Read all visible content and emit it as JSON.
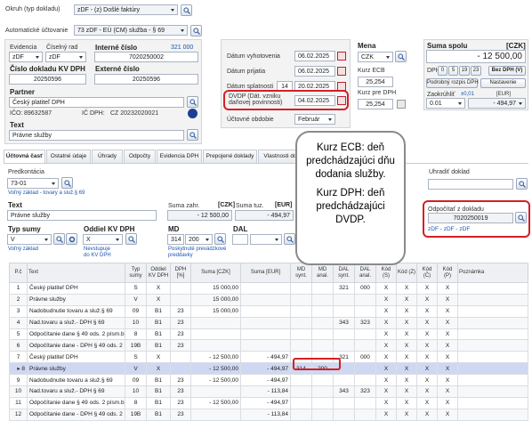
{
  "top": {
    "okruh_label": "Okruh (typ dokladu)",
    "okruh_value": "zDF - (z) Došlé faktúry",
    "auto_label": "Automatické účtovanie",
    "auto_value": "73 zDF - EÚ (CM) služba - § 69"
  },
  "doc": {
    "evidencia_label": "Evidencia",
    "evidencia_value": "zDF",
    "ciselny_rad_label": "Číselný rad",
    "ciselny_rad_value": "zDF",
    "interne_cislo_label": "Interné číslo",
    "interne_cislo_counter": "321 000",
    "interne_cislo_value": "7020250002",
    "kvdph_label": "Číslo dokladu KV DPH",
    "kvdph_value": "20250596",
    "externe_label": "Externé číslo",
    "externe_value": "20250596",
    "partner_label": "Partner",
    "partner_value": "Český platiteľ DPH",
    "ico_label": "IČO:",
    "ico_value": "89632587",
    "icdph_label": "IČ DPH:",
    "icdph_value": "CZ 20232020021",
    "text_label": "Text",
    "text_value": "Právne služby"
  },
  "dates": {
    "vyhotovenia_label": "Dátum vyhotovenia",
    "vyhotovenia_value": "06.02.2025",
    "prijatia_label": "Dátum prijatia",
    "prijatia_value": "06.02.2025",
    "splatnosti_label": "Dátum splatnosti",
    "splatnosti_days": "14",
    "splatnosti_value": "20.02.2025",
    "dvdp_label_1": "DVDP (Dát. vzniku",
    "dvdp_label_2": "daňovej povinnosti)",
    "dvdp_value": "04.02.2025",
    "obdobie_label": "Účtovné obdobie",
    "obdobie_value": "Február"
  },
  "currency": {
    "mena_label": "Mena",
    "mena_value": "CZK",
    "kurz_ecb_label": "Kurz ECB",
    "kurz_ecb_value": "25,254",
    "kurz_dph_label": "Kurz pre DPH",
    "kurz_dph_value": "25,254"
  },
  "sum": {
    "title": "Suma spolu",
    "currency": "[CZK]",
    "value": "- 12 500,00",
    "dph_label": "DPH",
    "rates": [
      "0",
      "5",
      "19",
      "23"
    ],
    "bez_dph": "Bez DPH (V)",
    "podrobny": "Podrobný rozpis DPH",
    "nastavenie": "Nastavenie",
    "zaokruhlit_label": "Zaokrúhliť",
    "zaokruhlit_step": "±0,01",
    "zaokruhlit_value": "0.01",
    "eur_label": "[EUR]",
    "eur_value": "- 494,97"
  },
  "callout": {
    "ecb_text": "Kurz ECB: deň predchádzajúci dňu dodania služby.",
    "dph_text": "Kurz DPH: deň predchádzajúci DVDP."
  },
  "tabs": [
    "Účtovná časť",
    "Ostatné údaje",
    "Úhrady",
    "Odpočty",
    "Evidencia DPH",
    "Prepojené doklady",
    "Vlastnosti do"
  ],
  "detail": {
    "predkontacia_label": "Predkontácia",
    "predkontacia_value": "73-01",
    "predkontacia_note": "Voľný základ - tovary a služ.§ 69",
    "uhradit_label": "Uhradiť doklad",
    "text_label": "Text",
    "text_value": "Právne služby",
    "suma_zahr_label": "Suma zahr.",
    "suma_zahr_unit": "[CZK]",
    "suma_zahr_value": "- 12 500,00",
    "suma_tuz_label": "Suma tuz.",
    "suma_tuz_unit": "[EUR]",
    "suma_tuz_value": "- 494,97",
    "odpocitat_label": "Odpočítať z dokladu",
    "odpocitat_value": "7020250019",
    "odpocitat_note": "zDF - zDF - zDF",
    "typ_sumy_label": "Typ sumy",
    "typ_sumy_value": "V",
    "typ_sumy_note": "Voľný základ",
    "oddiel_label": "Oddiel KV DPH",
    "oddiel_value": "X",
    "oddiel_note_1": "Nevstupuje",
    "oddiel_note_2": "do KV DPH",
    "md_label": "MD",
    "md_value_1": "314",
    "md_value_2": "200",
    "md_note_1": "Poskytnuté prevádzkové",
    "md_note_2": "preddavky",
    "dal_label": "DAL"
  },
  "table": {
    "headers": [
      "P.č",
      "Text",
      "Typ sumy",
      "Oddiel KV DPH",
      "DPH [%]",
      "Suma [CZK]",
      "Suma [EUR]",
      "MD synt.",
      "MD anal.",
      "DAL synt.",
      "DAL anal.",
      "Kód (S)",
      "Kód (Z)",
      "Kód (Č)",
      "Kód (P)",
      "Poznámka"
    ],
    "rows": [
      [
        "1",
        "Český platiteľ DPH",
        "S",
        "X",
        "",
        "15 000,00",
        "",
        "",
        "",
        "321",
        "000",
        "X",
        "X",
        "X",
        "X",
        ""
      ],
      [
        "2",
        "Právne služby",
        "V",
        "X",
        "",
        "15 000,00",
        "",
        "",
        "",
        "",
        "",
        "X",
        "X",
        "X",
        "X",
        ""
      ],
      [
        "3",
        "Nadobudnutie tovaru a služ.§ 69",
        "09",
        "B1",
        "23",
        "15 000,00",
        "",
        "",
        "",
        "",
        "",
        "X",
        "X",
        "X",
        "X",
        ""
      ],
      [
        "4",
        "Nad.tovaru a služ.- DPH § 69",
        "10",
        "B1",
        "23",
        "",
        "",
        "",
        "",
        "343",
        "323",
        "X",
        "X",
        "X",
        "X",
        ""
      ],
      [
        "5",
        "Odpočítanie dane § 49 ods. 2 písm.b)",
        "8",
        "B1",
        "23",
        "",
        "",
        "",
        "",
        "",
        "",
        "X",
        "X",
        "X",
        "X",
        ""
      ],
      [
        "6",
        "Odpočítanie dane - DPH § 49 ods. 2 písm.b)",
        "19B",
        "B1",
        "23",
        "",
        "",
        "",
        "",
        "",
        "",
        "X",
        "X",
        "X",
        "X",
        ""
      ],
      [
        "7",
        "Český platiteľ DPH",
        "S",
        "X",
        "",
        "- 12 500,00",
        "- 494,97",
        "",
        "",
        "321",
        "000",
        "X",
        "X",
        "X",
        "X",
        ""
      ],
      [
        "8",
        "Právne služby",
        "V",
        "X",
        "",
        "- 12 500,00",
        "- 494,97",
        "314",
        "200",
        "",
        "",
        "X",
        "X",
        "X",
        "X",
        ""
      ],
      [
        "9",
        "Nadobudnutie tovaru a služ.§ 69",
        "09",
        "B1",
        "23",
        "- 12 500,00",
        "- 494,97",
        "",
        "",
        "",
        "",
        "X",
        "X",
        "X",
        "X",
        ""
      ],
      [
        "10",
        "Nad.tovaru a služ.- DPH § 69",
        "10",
        "B1",
        "23",
        "",
        "- 113,84",
        "",
        "",
        "343",
        "323",
        "X",
        "X",
        "X",
        "X",
        ""
      ],
      [
        "11",
        "Odpočítanie dane § 49 ods. 2 písm.b)",
        "8",
        "B1",
        "23",
        "- 12 500,00",
        "- 494,97",
        "",
        "",
        "",
        "",
        "X",
        "X",
        "X",
        "X",
        ""
      ],
      [
        "12",
        "Odpočítanie dane - DPH § 49 ods. 2 písm.b)",
        "19B",
        "B1",
        "23",
        "",
        "- 113,84",
        "",
        "",
        "",
        "",
        "X",
        "X",
        "X",
        "X",
        ""
      ]
    ],
    "selected_row": 8
  }
}
